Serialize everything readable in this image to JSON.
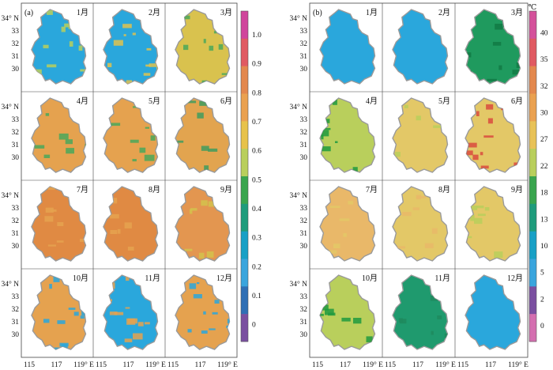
{
  "panels": [
    {
      "tag": "(a)",
      "months": [
        "1月",
        "2月",
        "3月",
        "4月",
        "5月",
        "6月",
        "7月",
        "8月",
        "9月",
        "10月",
        "11月",
        "12月"
      ],
      "lat_ticks": [
        "34° N",
        "33",
        "32",
        "31",
        "30"
      ],
      "lon_ticks": [
        "115",
        "117",
        "119° E"
      ],
      "legend_ticks": [
        "1.0",
        "0.9",
        "0.8",
        "0.7",
        "0.6",
        "0.5",
        "0.4",
        "0.3",
        "0.2",
        "0.1",
        "0"
      ],
      "legend_colors": [
        "#d0459c",
        "#e05a62",
        "#e3884e",
        "#eaa150",
        "#e7c24a",
        "#b9cf5c",
        "#3aa54e",
        "#1f9c7c",
        "#18a0c6",
        "#3aa5dd",
        "#2f6fb5",
        "#7a4fa0"
      ],
      "cell_colors": [
        {
          "base": "#2aa7dc",
          "accent": "#b9cf5c",
          "accent_level": 0.3
        },
        {
          "base": "#2aa7dc",
          "accent": "#dfc24d",
          "accent_level": 0.38
        },
        {
          "base": "#d9c24e",
          "accent": "#4aa85a",
          "accent_level": 0.32
        },
        {
          "base": "#e5a24f",
          "accent": "#4aa85a",
          "accent_level": 0.18
        },
        {
          "base": "#e5a24f",
          "accent": "#4aa85a",
          "accent_level": 0.2
        },
        {
          "base": "#e2a44f",
          "accent": "#3f9c5e",
          "accent_level": 0.28
        },
        {
          "base": "#e08a43",
          "accent": "#e5a24f",
          "accent_level": 0.2
        },
        {
          "base": "#e08a43",
          "accent": "#e5a24f",
          "accent_level": 0.18
        },
        {
          "base": "#e39650",
          "accent": "#d4c24c",
          "accent_level": 0.22
        },
        {
          "base": "#e5a24f",
          "accent": "#2aa7dc",
          "accent_level": 0.38
        },
        {
          "base": "#2aa7dc",
          "accent": "#e5a24f",
          "accent_level": 0.4
        },
        {
          "base": "#e5a24f",
          "accent": "#2aa7dc",
          "accent_level": 0.36
        }
      ]
    },
    {
      "tag": "(b)",
      "months": [
        "1月",
        "2月",
        "3月",
        "4月",
        "5月",
        "6月",
        "7月",
        "8月",
        "9月",
        "10月",
        "11月",
        "12月"
      ],
      "lat_ticks": [
        "34° N",
        "33",
        "32",
        "31",
        "30"
      ],
      "lon_ticks": [
        "115",
        "117",
        "119° E"
      ],
      "legend_unit": "℃",
      "legend_ticks": [
        "40",
        "35",
        "32",
        "30",
        "27",
        "22",
        "18",
        "13",
        "10",
        "5",
        "2",
        "0"
      ],
      "legend_colors": [
        "#d4519b",
        "#e05a62",
        "#e3884e",
        "#eaa150",
        "#e8c257",
        "#b9cf5c",
        "#3aa54e",
        "#1f9c7c",
        "#18a0c6",
        "#3aa5dd",
        "#7a4fa0",
        "#d46fb0"
      ],
      "cell_colors": [
        {
          "base": "#2aa7dc",
          "accent": "#2aa7dc",
          "accent_level": 0.0
        },
        {
          "base": "#2aa7dc",
          "accent": "#2aa7dc",
          "accent_level": 0.0
        },
        {
          "base": "#1f9a5e",
          "accent": "#127a44",
          "accent_level": 0.3
        },
        {
          "base": "#b9cf5c",
          "accent": "#1f9a3e",
          "accent_level": 0.3
        },
        {
          "base": "#e3c867",
          "accent": "#b9cf5c",
          "accent_level": 0.12
        },
        {
          "base": "#e3c867",
          "accent": "#d94b3e",
          "accent_level": 0.3
        },
        {
          "base": "#e9b869",
          "accent": "#e3c867",
          "accent_level": 0.2
        },
        {
          "base": "#e3c867",
          "accent": "#e9b869",
          "accent_level": 0.15
        },
        {
          "base": "#e3c867",
          "accent": "#b9cf5c",
          "accent_level": 0.15
        },
        {
          "base": "#b9cf5c",
          "accent": "#1f9a3e",
          "accent_level": 0.2
        },
        {
          "base": "#1f9a6e",
          "accent": "#1f8a5e",
          "accent_level": 0.1
        },
        {
          "base": "#2aa7dc",
          "accent": "#2aa7dc",
          "accent_level": 0.0
        }
      ]
    }
  ]
}
